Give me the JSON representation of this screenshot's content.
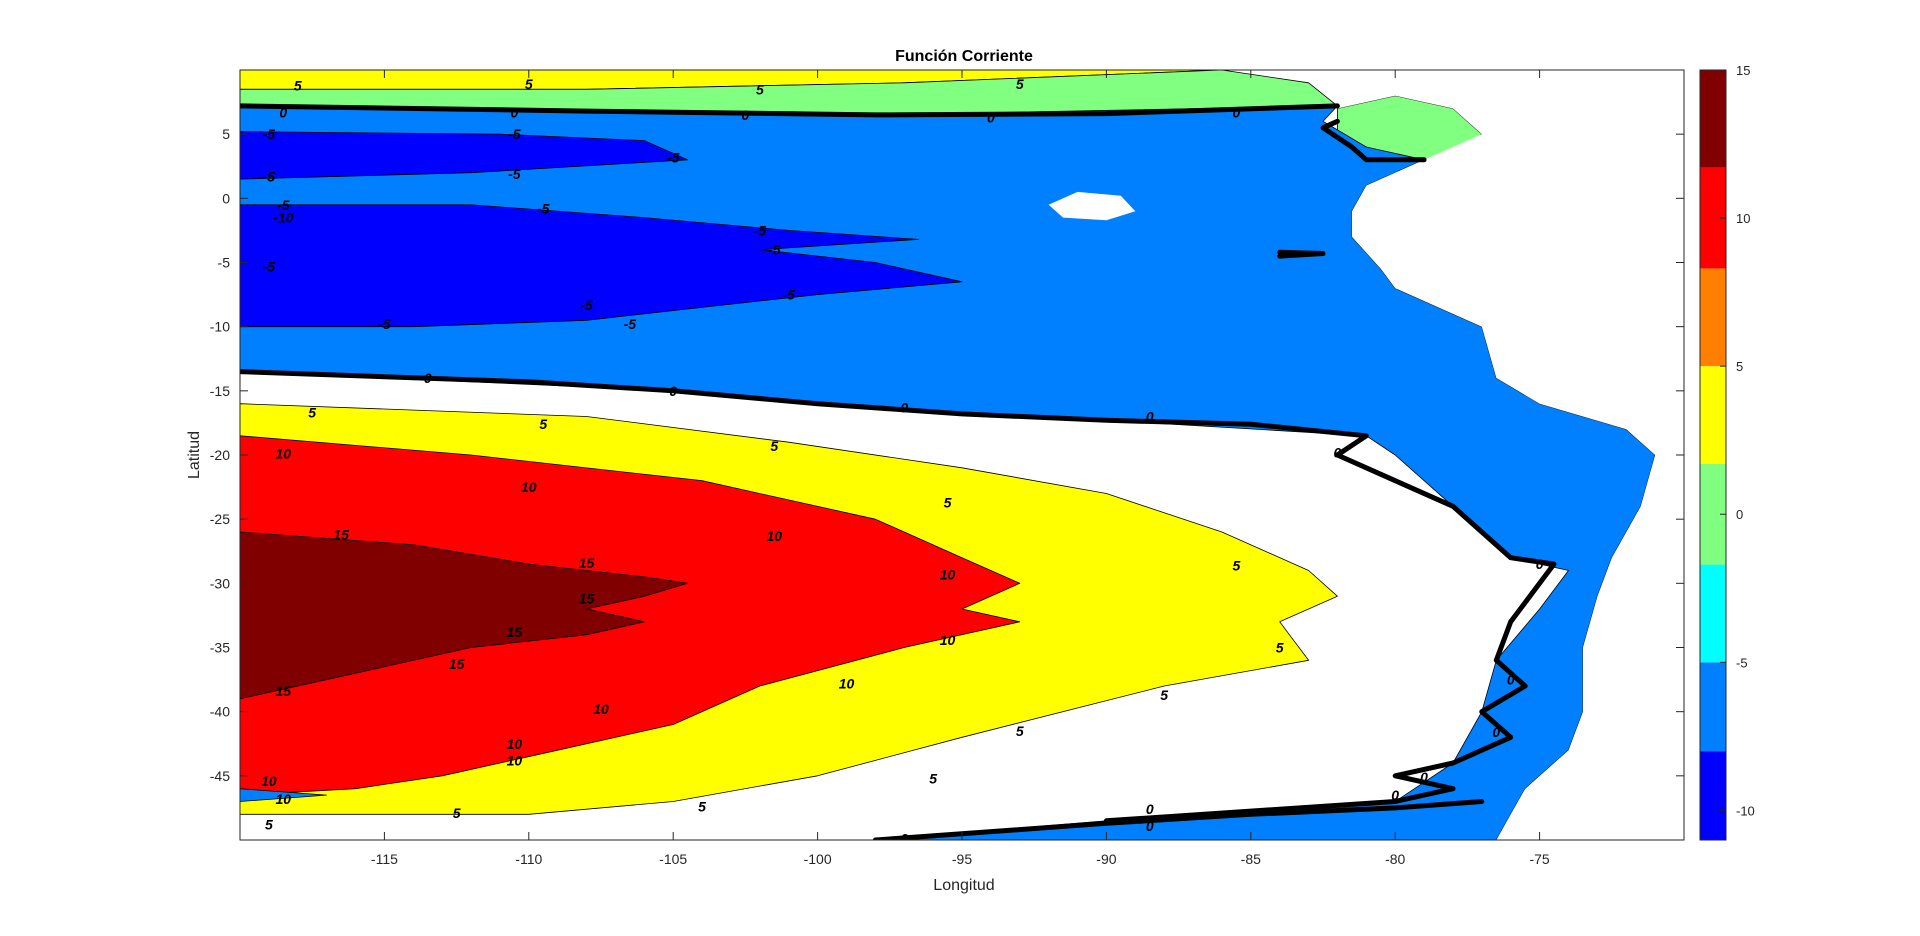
{
  "chart_data": {
    "type": "contour",
    "title": "Función Corriente",
    "xlabel": "Longitud",
    "ylabel": "Latitud",
    "xlim": [
      -120,
      -70
    ],
    "ylim": [
      -50,
      10
    ],
    "xticks": [
      -115,
      -110,
      -105,
      -100,
      -95,
      -90,
      -85,
      -80,
      -75
    ],
    "yticks": [
      -45,
      -40,
      -35,
      -30,
      -25,
      -20,
      -15,
      -10,
      -5,
      0,
      5
    ],
    "colorbar": {
      "range": [
        -11,
        15
      ],
      "ticks": [
        -10,
        -5,
        0,
        5,
        10,
        15
      ],
      "levels": [
        {
          "from": -11,
          "to": -8,
          "color": "#0000ff"
        },
        {
          "from": -8,
          "to": -5,
          "color": "#0080ff"
        },
        {
          "from": -5,
          "to": -1.7,
          "color": "#00ffff"
        },
        {
          "from": -1.7,
          "to": 1.7,
          "color": "#80ff80"
        },
        {
          "from": 1.7,
          "to": 5,
          "color": "#ffff00"
        },
        {
          "from": 5,
          "to": 8.3,
          "color": "#ff8000"
        },
        {
          "from": 8.3,
          "to": 11.7,
          "color": "#ff0000"
        },
        {
          "from": 11.7,
          "to": 15,
          "color": "#800000"
        }
      ]
    },
    "regions": [
      {
        "level": 5,
        "color": "#ffff00",
        "points": [
          [
            -120,
            10
          ],
          [
            -86,
            10
          ],
          [
            -97,
            9
          ],
          [
            -108,
            8.5
          ],
          [
            -120,
            8.5
          ]
        ]
      },
      {
        "level": 0,
        "color": "#80ff80",
        "points": [
          [
            -120,
            8.5
          ],
          [
            -108,
            8.5
          ],
          [
            -97,
            9
          ],
          [
            -86,
            10
          ],
          [
            -83,
            9
          ],
          [
            -82,
            7.2
          ],
          [
            -83,
            6.5
          ],
          [
            -98,
            6.5
          ],
          [
            -120,
            7.2
          ]
        ]
      },
      {
        "level": 0,
        "color": "#80ff80",
        "points": [
          [
            -82,
            7
          ],
          [
            -80,
            8
          ],
          [
            -78,
            7
          ],
          [
            -77,
            5
          ],
          [
            -78,
            3
          ],
          [
            -80,
            3
          ],
          [
            -82,
            5
          ]
        ]
      },
      {
        "level": 0,
        "color": "#80ff80",
        "points": [
          [
            -77,
            10
          ],
          [
            -75,
            10
          ],
          [
            -76,
            9.3
          ]
        ]
      },
      {
        "level": -5,
        "color": "#0080ff",
        "points": [
          [
            -120,
            7.2
          ],
          [
            -98,
            6.5
          ],
          [
            -82,
            7.2
          ],
          [
            -82.5,
            6
          ],
          [
            -81,
            4
          ],
          [
            -79,
            3
          ],
          [
            -81,
            1
          ],
          [
            -81.5,
            -1
          ],
          [
            -81.5,
            -3
          ],
          [
            -80.5,
            -5.5
          ],
          [
            -80,
            -7
          ],
          [
            -77,
            -10
          ],
          [
            -76.5,
            -14
          ],
          [
            -75,
            -16
          ],
          [
            -72,
            -18
          ],
          [
            -71,
            -20
          ],
          [
            -71.5,
            -24
          ],
          [
            -72.5,
            -28
          ],
          [
            -73,
            -31
          ],
          [
            -73.5,
            -35
          ],
          [
            -73.5,
            -40
          ],
          [
            -74,
            -43
          ],
          [
            -75.5,
            -46
          ],
          [
            -76,
            -48
          ],
          [
            -76.5,
            -50
          ],
          [
            -98,
            -50
          ],
          [
            -90,
            -48.5
          ],
          [
            -80,
            -47
          ],
          [
            -78,
            -44
          ],
          [
            -77,
            -40
          ],
          [
            -76.5,
            -36
          ],
          [
            -75,
            -32
          ],
          [
            -74,
            -29
          ],
          [
            -76,
            -28
          ],
          [
            -78,
            -24
          ],
          [
            -80,
            -20
          ],
          [
            -81,
            -18.5
          ],
          [
            -90,
            -17.3
          ],
          [
            -100,
            -16
          ],
          [
            -105,
            -15
          ],
          [
            -120,
            -13.5
          ]
        ]
      },
      {
        "level": -10,
        "color": "#0000ff",
        "points": [
          [
            -120,
            5.2
          ],
          [
            -111,
            5
          ],
          [
            -106,
            4.5
          ],
          [
            -104.5,
            3
          ],
          [
            -106,
            2.8
          ],
          [
            -112,
            2
          ],
          [
            -120,
            1.5
          ]
        ]
      },
      {
        "level": -10,
        "color": "#0000ff",
        "points": [
          [
            -120,
            -0.5
          ],
          [
            -112,
            -0.5
          ],
          [
            -106,
            -1.5
          ],
          [
            -101,
            -2.5
          ],
          [
            -96.5,
            -3.2
          ],
          [
            -102,
            -4
          ],
          [
            -98,
            -5
          ],
          [
            -95,
            -6.5
          ],
          [
            -100,
            -7.5
          ],
          [
            -104,
            -8.5
          ],
          [
            -108,
            -9.5
          ],
          [
            -114,
            -10
          ],
          [
            -120,
            -10
          ]
        ]
      },
      {
        "level": 5,
        "color": "#ffff00",
        "points": [
          [
            -120,
            -16
          ],
          [
            -108,
            -17
          ],
          [
            -101,
            -19
          ],
          [
            -95,
            -21
          ],
          [
            -90,
            -23
          ],
          [
            -86,
            -26
          ],
          [
            -83,
            -29
          ],
          [
            -82,
            -31
          ],
          [
            -84,
            -33
          ],
          [
            -83,
            -36
          ],
          [
            -88,
            -38
          ],
          [
            -95,
            -42
          ],
          [
            -100,
            -45
          ],
          [
            -105,
            -47
          ],
          [
            -110,
            -48
          ],
          [
            -120,
            -48
          ]
        ]
      },
      {
        "level": 10,
        "color": "#ff0000",
        "points": [
          [
            -120,
            -18.5
          ],
          [
            -112,
            -20
          ],
          [
            -104,
            -22
          ],
          [
            -98,
            -25
          ],
          [
            -95,
            -28
          ],
          [
            -93,
            -30
          ],
          [
            -95,
            -32
          ],
          [
            -93,
            -33
          ],
          [
            -97,
            -35
          ],
          [
            -102,
            -38
          ],
          [
            -105,
            -41
          ],
          [
            -109,
            -43
          ],
          [
            -113,
            -45
          ],
          [
            -116,
            -46
          ],
          [
            -120,
            -46.5
          ]
        ]
      },
      {
        "level": 15,
        "color": "#800000",
        "points": [
          [
            -120,
            -26
          ],
          [
            -114,
            -27
          ],
          [
            -110,
            -28.5
          ],
          [
            -106,
            -29.5
          ],
          [
            -104.5,
            -30
          ],
          [
            -106,
            -31
          ],
          [
            -108,
            -32
          ],
          [
            -106,
            -33
          ],
          [
            -108,
            -34
          ],
          [
            -112,
            -35
          ],
          [
            -116,
            -37
          ],
          [
            -120,
            -39
          ]
        ]
      },
      {
        "level": -5,
        "color": "#0080ff",
        "points": [
          [
            -120,
            -46
          ],
          [
            -117,
            -46.5
          ],
          [
            -120,
            -47
          ]
        ]
      }
    ],
    "land": [
      {
        "color": "#ffffff",
        "points": [
          [
            -82,
            10
          ],
          [
            -70,
            10
          ],
          [
            -70,
            -50
          ],
          [
            -76.5,
            -50
          ],
          [
            -76,
            -48
          ],
          [
            -75.5,
            -46
          ],
          [
            -74,
            -43
          ],
          [
            -73.5,
            -40
          ],
          [
            -73.5,
            -35
          ],
          [
            -73,
            -31
          ],
          [
            -72.5,
            -28
          ],
          [
            -71.5,
            -24
          ],
          [
            -71,
            -20
          ],
          [
            -72,
            -18
          ],
          [
            -75,
            -16
          ],
          [
            -76.5,
            -14
          ],
          [
            -77,
            -10
          ],
          [
            -80,
            -7
          ],
          [
            -80.5,
            -5.5
          ],
          [
            -81.5,
            -3
          ],
          [
            -81.5,
            -1
          ],
          [
            -81,
            1
          ],
          [
            -79,
            3
          ],
          [
            -77,
            5
          ],
          [
            -78,
            7
          ],
          [
            -80,
            8
          ],
          [
            -82,
            7
          ]
        ]
      },
      {
        "color": "#ffffff",
        "points": [
          [
            -91,
            0.5
          ],
          [
            -89.5,
            0.2
          ],
          [
            -89,
            -1
          ],
          [
            -90,
            -1.7
          ],
          [
            -91.5,
            -1.5
          ],
          [
            -92,
            -0.5
          ]
        ]
      }
    ],
    "zero_contours": [
      [
        [
          -120,
          7.2
        ],
        [
          -108,
          6.8
        ],
        [
          -98,
          6.5
        ],
        [
          -90,
          6.6
        ],
        [
          -82,
          7.2
        ]
      ],
      [
        [
          -82,
          6
        ],
        [
          -82.5,
          5.5
        ],
        [
          -81.5,
          4
        ],
        [
          -81,
          3
        ],
        [
          -79,
          3
        ]
      ],
      [
        [
          -84,
          -4.2
        ],
        [
          -82.5,
          -4.3
        ],
        [
          -84,
          -4.5
        ]
      ],
      [
        [
          -120,
          -13.5
        ],
        [
          -110,
          -14.3
        ],
        [
          -105,
          -15
        ],
        [
          -100,
          -16
        ],
        [
          -95,
          -16.8
        ],
        [
          -90,
          -17.3
        ],
        [
          -85,
          -17.6
        ],
        [
          -81,
          -18.5
        ],
        [
          -82,
          -20
        ],
        [
          -80,
          -22
        ],
        [
          -78,
          -24
        ],
        [
          -77,
          -26
        ],
        [
          -76,
          -28
        ],
        [
          -74.5,
          -28.5
        ],
        [
          -75,
          -30
        ],
        [
          -76,
          -33
        ],
        [
          -76.5,
          -36
        ],
        [
          -75.5,
          -38
        ],
        [
          -77,
          -40
        ],
        [
          -76,
          -42
        ],
        [
          -78,
          -44
        ],
        [
          -80,
          -45
        ],
        [
          -78,
          -46
        ],
        [
          -80,
          -47
        ],
        [
          -90,
          -48.5
        ]
      ],
      [
        [
          -98,
          -50
        ],
        [
          -90,
          -48.7
        ],
        [
          -85,
          -48
        ],
        [
          -80,
          -47.5
        ],
        [
          -77,
          -47
        ]
      ]
    ],
    "contour_labels": [
      {
        "x": -118,
        "y": 8.8,
        "text": "5"
      },
      {
        "x": -110,
        "y": 8.9,
        "text": "5"
      },
      {
        "x": -102,
        "y": 8.5,
        "text": "5"
      },
      {
        "x": -93,
        "y": 8.9,
        "text": "5"
      },
      {
        "x": -118.5,
        "y": 6.7,
        "text": "0"
      },
      {
        "x": -110.5,
        "y": 6.7,
        "text": "0"
      },
      {
        "x": -102.5,
        "y": 6.5,
        "text": "0"
      },
      {
        "x": -94,
        "y": 6.3,
        "text": "0"
      },
      {
        "x": -85.5,
        "y": 6.7,
        "text": "0"
      },
      {
        "x": -119,
        "y": 5,
        "text": "-5"
      },
      {
        "x": -110.5,
        "y": 5,
        "text": "-5"
      },
      {
        "x": -119,
        "y": 1.7,
        "text": "-5"
      },
      {
        "x": -110.5,
        "y": 1.9,
        "text": "-5"
      },
      {
        "x": -105,
        "y": 3.2,
        "text": "-5"
      },
      {
        "x": -118.5,
        "y": -0.5,
        "text": "-5"
      },
      {
        "x": -118.5,
        "y": -1.5,
        "text": "-10"
      },
      {
        "x": -109.5,
        "y": -0.8,
        "text": "-5"
      },
      {
        "x": -102,
        "y": -2.5,
        "text": "-5"
      },
      {
        "x": -101.5,
        "y": -4,
        "text": "-5"
      },
      {
        "x": -101,
        "y": -7.5,
        "text": "-5"
      },
      {
        "x": -108,
        "y": -8.3,
        "text": "-5"
      },
      {
        "x": -106.5,
        "y": -9.8,
        "text": "-5"
      },
      {
        "x": -115,
        "y": -9.8,
        "text": "-5"
      },
      {
        "x": -119,
        "y": -5.3,
        "text": "-5"
      },
      {
        "x": -113.5,
        "y": -14,
        "text": "0"
      },
      {
        "x": -105,
        "y": -15,
        "text": "0"
      },
      {
        "x": -97,
        "y": -16.3,
        "text": "0"
      },
      {
        "x": -88.5,
        "y": -17,
        "text": "0"
      },
      {
        "x": -82,
        "y": -19.8,
        "text": "0"
      },
      {
        "x": -75,
        "y": -28.5,
        "text": "0"
      },
      {
        "x": -117.5,
        "y": -16.7,
        "text": "5"
      },
      {
        "x": -109.5,
        "y": -17.6,
        "text": "5"
      },
      {
        "x": -101.5,
        "y": -19.3,
        "text": "5"
      },
      {
        "x": -95.5,
        "y": -23.7,
        "text": "5"
      },
      {
        "x": -85.5,
        "y": -28.6,
        "text": "5"
      },
      {
        "x": -118.5,
        "y": -19.9,
        "text": "10"
      },
      {
        "x": -110,
        "y": -22.5,
        "text": "10"
      },
      {
        "x": -101.5,
        "y": -26.3,
        "text": "10"
      },
      {
        "x": -95.5,
        "y": -29.3,
        "text": "10"
      },
      {
        "x": -95.5,
        "y": -34.4,
        "text": "10"
      },
      {
        "x": -116.5,
        "y": -26.2,
        "text": "15"
      },
      {
        "x": -108,
        "y": -28.4,
        "text": "15"
      },
      {
        "x": -108,
        "y": -31.2,
        "text": "15"
      },
      {
        "x": -110.5,
        "y": -33.8,
        "text": "15"
      },
      {
        "x": -112.5,
        "y": -36.3,
        "text": "15"
      },
      {
        "x": -118.5,
        "y": -38.4,
        "text": "15"
      },
      {
        "x": -84,
        "y": -35,
        "text": "5"
      },
      {
        "x": -88,
        "y": -38.7,
        "text": "5"
      },
      {
        "x": -93,
        "y": -41.5,
        "text": "5"
      },
      {
        "x": -96,
        "y": -45.2,
        "text": "5"
      },
      {
        "x": -104,
        "y": -47.4,
        "text": "5"
      },
      {
        "x": -112.5,
        "y": -47.9,
        "text": "5"
      },
      {
        "x": -119,
        "y": -48.8,
        "text": "5"
      },
      {
        "x": -99,
        "y": -37.8,
        "text": "10"
      },
      {
        "x": -107.5,
        "y": -39.8,
        "text": "10"
      },
      {
        "x": -110.5,
        "y": -42.5,
        "text": "10"
      },
      {
        "x": -110.5,
        "y": -43.8,
        "text": "10"
      },
      {
        "x": -119,
        "y": -45.4,
        "text": "10"
      },
      {
        "x": -118.5,
        "y": -46.8,
        "text": "10"
      },
      {
        "x": -79,
        "y": -45.1,
        "text": "0"
      },
      {
        "x": -80,
        "y": -46.5,
        "text": "0"
      },
      {
        "x": -88.5,
        "y": -47.6,
        "text": "0"
      },
      {
        "x": -88.5,
        "y": -48.9,
        "text": "0"
      },
      {
        "x": -97,
        "y": -49.9,
        "text": "0"
      },
      {
        "x": -76.5,
        "y": -41.6,
        "text": "0"
      },
      {
        "x": -76,
        "y": -37.5,
        "text": "0"
      }
    ]
  }
}
